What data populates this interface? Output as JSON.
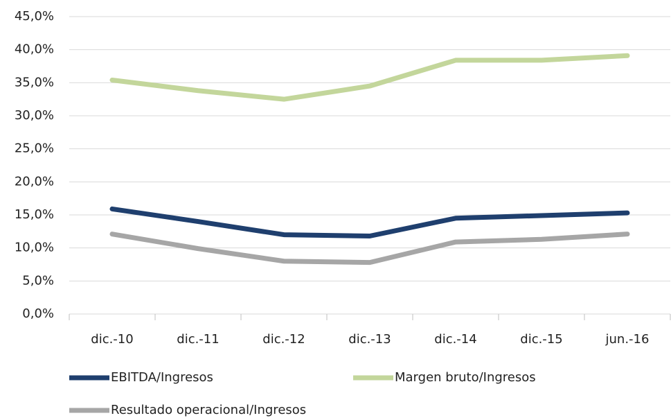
{
  "chart_data": {
    "type": "line",
    "categories": [
      "dic.-10",
      "dic.-11",
      "dic.-12",
      "dic.-13",
      "dic.-14",
      "dic.-15",
      "jun.-16"
    ],
    "series": [
      {
        "name": "EBITDA/Ingresos",
        "color": "#1f3f6e",
        "values": [
          15.9,
          14.0,
          12.0,
          11.8,
          14.5,
          14.9,
          15.3
        ]
      },
      {
        "name": "Margen bruto/Ingresos",
        "color": "#c3d69b",
        "values": [
          35.4,
          33.8,
          32.5,
          34.5,
          38.4,
          38.4,
          39.1
        ]
      },
      {
        "name": "Resultado operacional/Ingresos",
        "color": "#a6a6a6",
        "values": [
          12.1,
          9.9,
          8.0,
          7.8,
          10.9,
          11.3,
          12.1
        ]
      }
    ],
    "ylim": [
      0,
      45
    ],
    "yticks": [
      {
        "value": 0,
        "label": "0,0%"
      },
      {
        "value": 5,
        "label": "5,0%"
      },
      {
        "value": 10,
        "label": "10,0%"
      },
      {
        "value": 15,
        "label": "15,0%"
      },
      {
        "value": 20,
        "label": "20,0%"
      },
      {
        "value": 25,
        "label": "25,0%"
      },
      {
        "value": 30,
        "label": "30,0%"
      },
      {
        "value": 35,
        "label": "35,0%"
      },
      {
        "value": 40,
        "label": "40,0%"
      },
      {
        "value": 45,
        "label": "45,0%"
      }
    ],
    "grid": true
  }
}
